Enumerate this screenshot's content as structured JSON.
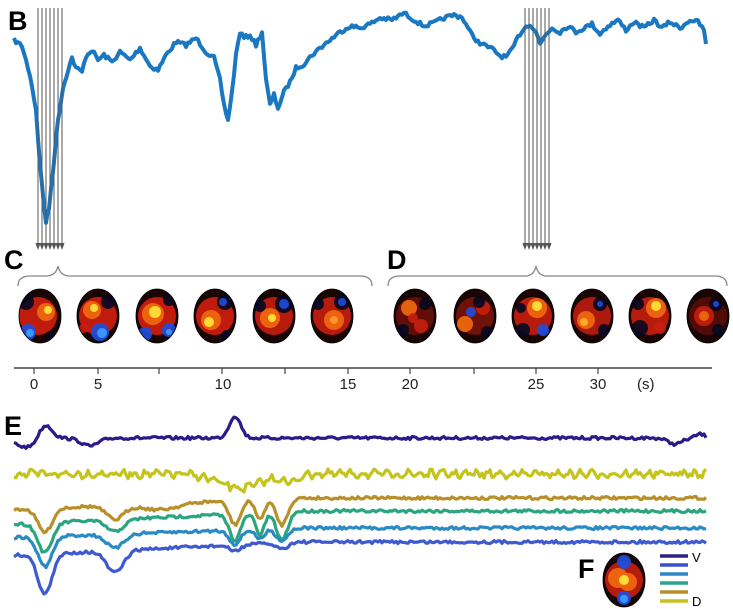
{
  "panels": {
    "B": "B",
    "C": "C",
    "D": "D",
    "E": "E",
    "F": "F"
  },
  "time_axis": {
    "unit": "(s)",
    "ticks": [
      "0",
      "5",
      "10",
      "15",
      "20",
      "25",
      "30"
    ]
  },
  "legend": {
    "top_label": "V",
    "bottom_label": "D",
    "colors": [
      "#2a1f86",
      "#3b4fd0",
      "#2f86c8",
      "#2aa38f",
      "#b88f2a",
      "#c8c21e"
    ]
  },
  "colors": {
    "trace_B": "#1a78c2",
    "markers": "#555555",
    "brace": "#888888",
    "E_traces": [
      "#2a1b8a",
      "#c4c41c",
      "#b8902a",
      "#2ba57e",
      "#2a8ac4",
      "#3f5ad0"
    ]
  },
  "maps": {
    "C_count": 6,
    "D_count": 6
  }
}
